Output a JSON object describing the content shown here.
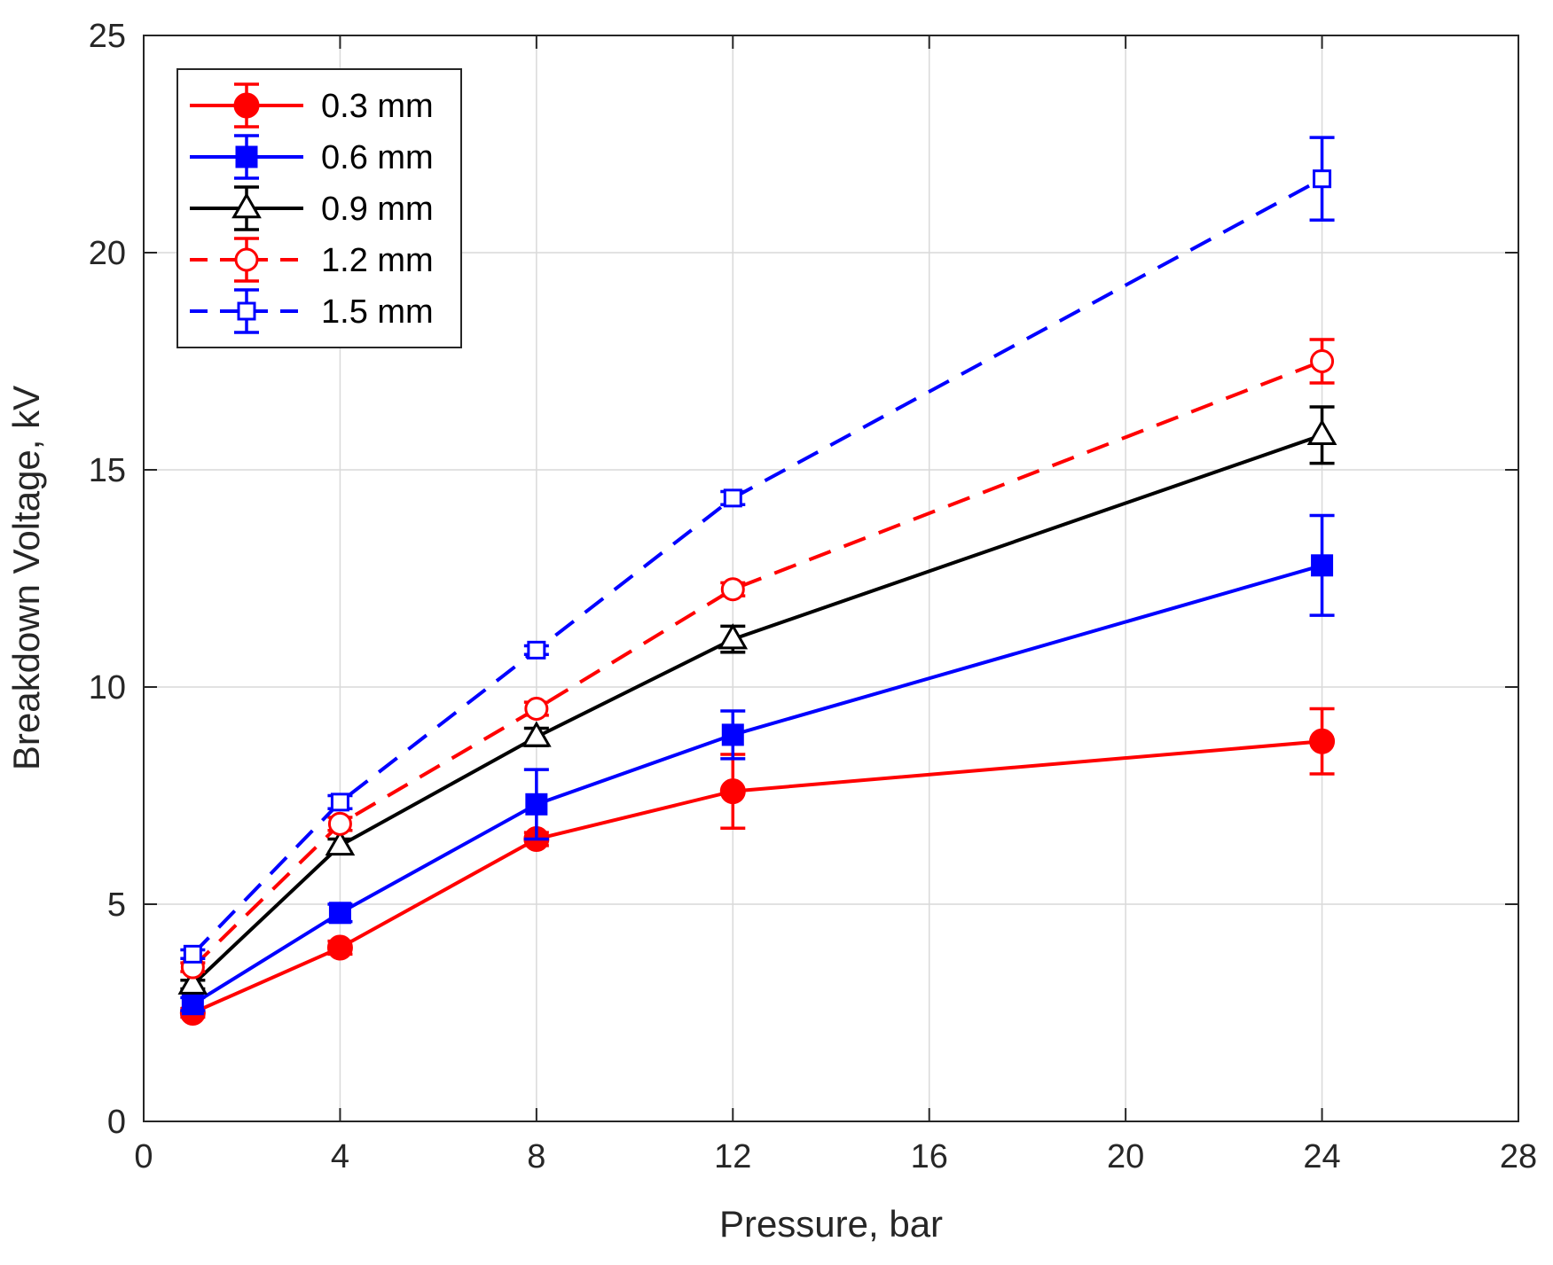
{
  "chart_data": {
    "type": "line",
    "title": "",
    "xlabel": "Pressure, bar",
    "ylabel": "Breakdown Voltage, kV",
    "xlim": [
      0,
      28
    ],
    "ylim": [
      0,
      25
    ],
    "xticks": [
      0,
      4,
      8,
      12,
      16,
      20,
      24,
      28
    ],
    "yticks": [
      0,
      5,
      10,
      15,
      20,
      25
    ],
    "x_tick_labels": [
      "0",
      "4",
      "8",
      "12",
      "16",
      "20",
      "24",
      "28"
    ],
    "y_tick_labels": [
      "0",
      "5",
      "10",
      "15",
      "20",
      "25"
    ],
    "grid": true,
    "legend_position": "top-left",
    "x": [
      1,
      4,
      8,
      12,
      24
    ],
    "series": [
      {
        "name": "0.3 mm",
        "color": "#ff0000",
        "line_style": "solid",
        "marker": "filled-circle",
        "values": [
          2.5,
          4.0,
          6.5,
          7.6,
          8.75
        ],
        "errors": [
          0.1,
          0.15,
          0.15,
          0.85,
          0.75
        ]
      },
      {
        "name": "0.6 mm",
        "color": "#0000ff",
        "line_style": "solid",
        "marker": "filled-square",
        "values": [
          2.7,
          4.8,
          7.3,
          8.9,
          12.8
        ],
        "errors": [
          0.15,
          0.2,
          0.8,
          0.55,
          1.15
        ]
      },
      {
        "name": "0.9 mm",
        "color": "#000000",
        "line_style": "solid",
        "marker": "open-triangle",
        "values": [
          3.15,
          6.35,
          8.85,
          11.1,
          15.8
        ],
        "errors": [
          0.1,
          0.15,
          0.2,
          0.3,
          0.65
        ]
      },
      {
        "name": "1.2 mm",
        "color": "#ff0000",
        "line_style": "dashed",
        "marker": "open-circle",
        "values": [
          3.55,
          6.85,
          9.5,
          12.25,
          17.5
        ],
        "errors": [
          0.1,
          0.15,
          0.15,
          0.15,
          0.5
        ]
      },
      {
        "name": "1.5 mm",
        "color": "#0000ff",
        "line_style": "dashed",
        "marker": "open-square",
        "values": [
          3.85,
          7.35,
          10.85,
          14.35,
          21.7
        ],
        "errors": [
          0.1,
          0.15,
          0.1,
          0.15,
          0.95
        ]
      }
    ]
  }
}
